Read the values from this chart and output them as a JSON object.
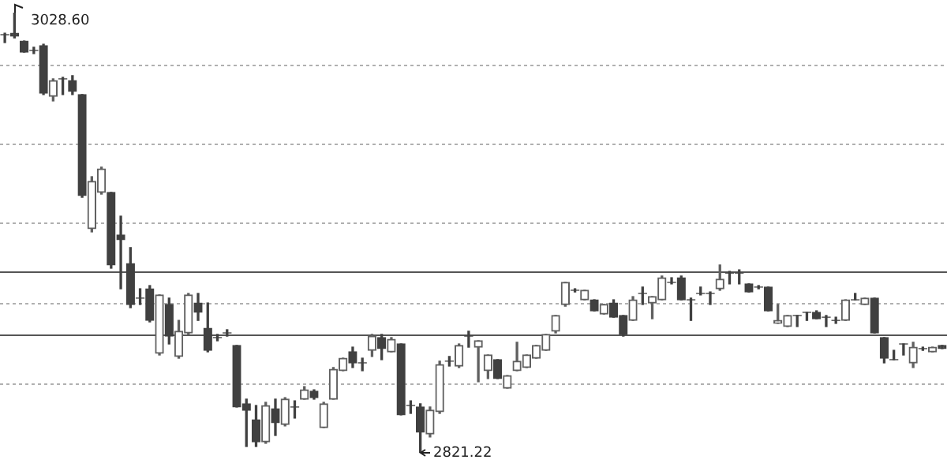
{
  "chart_data": {
    "type": "candlestick",
    "categories": [
      null,
      null,
      null,
      null,
      null,
      null,
      null,
      null,
      null,
      null,
      null,
      null,
      null,
      null,
      null,
      null,
      null,
      null,
      null,
      null,
      null,
      null,
      null,
      null,
      null,
      null,
      null,
      null,
      null,
      null,
      null,
      null,
      null,
      null,
      null,
      null,
      null,
      null,
      null,
      null,
      null,
      null,
      null,
      null,
      null,
      null,
      null,
      null,
      null,
      null,
      null,
      null,
      null,
      null,
      null,
      null,
      null,
      null,
      null,
      null,
      null,
      null,
      null,
      null,
      null,
      null,
      null,
      null,
      null,
      null,
      null,
      null,
      null,
      null,
      null,
      null,
      null,
      null,
      null,
      null,
      null,
      null,
      null,
      null,
      null,
      null,
      null,
      null,
      null,
      null,
      null,
      null,
      null,
      null,
      null,
      null,
      null,
      null
    ],
    "ohlc": [
      [
        3018.2,
        3018.9,
        3014.5,
        3018.2
      ],
      [
        3018.9,
        3028.6,
        3016.7,
        3017.5
      ],
      [
        3015.2,
        3015.2,
        3010.0,
        3010.0
      ],
      [
        3010.8,
        3012.3,
        3009.3,
        3010.8
      ],
      [
        3013.0,
        3013.7,
        2990.0,
        2990.7
      ],
      [
        2989.2,
        2997.4,
        2987.0,
        2996.6
      ],
      [
        2997.4,
        2998.1,
        2990.0,
        2997.4
      ],
      [
        2996.6,
        2998.9,
        2990.0,
        2991.5
      ],
      [
        2990.0,
        2990.0,
        2941.6,
        2942.4
      ],
      [
        2926.8,
        2951.3,
        2925.3,
        2949.1
      ],
      [
        2943.9,
        2955.8,
        2943.1,
        2955.0
      ],
      [
        2943.9,
        2943.9,
        2908.2,
        2909.7
      ],
      [
        2923.8,
        2932.7,
        2898.5,
        2921.6
      ],
      [
        2910.4,
        2917.9,
        2889.6,
        2891.1
      ],
      [
        2894.1,
        2898.5,
        2891.1,
        2894.1
      ],
      [
        2898.5,
        2900.0,
        2882.9,
        2883.6
      ],
      [
        2868.1,
        2895.6,
        2867.3,
        2895.6
      ],
      [
        2891.1,
        2894.1,
        2872.5,
        2876.2
      ],
      [
        2866.6,
        2883.6,
        2865.8,
        2878.5
      ],
      [
        2877.7,
        2896.3,
        2877.0,
        2895.6
      ],
      [
        2891.8,
        2896.3,
        2883.6,
        2887.4
      ],
      [
        2879.9,
        2891.8,
        2868.8,
        2869.5
      ],
      [
        2875.5,
        2877.0,
        2874.0,
        2875.5
      ],
      [
        2877.7,
        2879.2,
        2876.2,
        2877.7
      ],
      [
        2871.8,
        2871.8,
        2842.8,
        2842.8
      ],
      [
        2844.3,
        2846.5,
        2824.2,
        2841.3
      ],
      [
        2836.8,
        2843.5,
        2824.2,
        2826.4
      ],
      [
        2826.4,
        2845.0,
        2825.7,
        2843.5
      ],
      [
        2842.0,
        2846.5,
        2829.4,
        2835.4
      ],
      [
        2834.6,
        2847.2,
        2833.9,
        2846.5
      ],
      [
        2842.8,
        2845.7,
        2837.6,
        2842.8
      ],
      [
        2846.5,
        2852.4,
        2846.5,
        2850.9
      ],
      [
        2850.2,
        2850.9,
        2846.5,
        2847.2
      ],
      [
        2833.1,
        2845.0,
        2833.1,
        2844.3
      ],
      [
        2846.5,
        2861.4,
        2846.5,
        2860.6
      ],
      [
        2859.9,
        2865.8,
        2859.9,
        2865.8
      ],
      [
        2868.8,
        2871.0,
        2861.4,
        2863.6
      ],
      [
        2863.6,
        2865.8,
        2859.9,
        2863.6
      ],
      [
        2869.5,
        2877.0,
        2866.6,
        2876.2
      ],
      [
        2875.5,
        2877.0,
        2865.1,
        2870.3
      ],
      [
        2868.8,
        2875.5,
        2868.8,
        2874.7
      ],
      [
        2872.5,
        2872.5,
        2839.1,
        2839.1
      ],
      [
        2843.5,
        2845.7,
        2839.8,
        2843.5
      ],
      [
        2842.8,
        2844.3,
        2821.22,
        2830.9
      ],
      [
        2830.1,
        2842.8,
        2828.7,
        2841.3
      ],
      [
        2840.6,
        2864.4,
        2839.8,
        2862.8
      ],
      [
        2864.4,
        2866.6,
        2862.1,
        2864.4
      ],
      [
        2862.1,
        2872.5,
        2861.4,
        2871.8
      ],
      [
        2876.2,
        2878.5,
        2871.0,
        2876.2
      ],
      [
        2871.0,
        2874.0,
        2854.7,
        2874.0
      ],
      [
        2859.9,
        2867.3,
        2856.2,
        2867.3
      ],
      [
        2865.1,
        2865.1,
        2856.2,
        2856.2
      ],
      [
        2851.7,
        2857.6,
        2851.7,
        2857.6
      ],
      [
        2859.9,
        2873.3,
        2859.9,
        2864.4
      ],
      [
        2861.4,
        2867.3,
        2861.4,
        2867.3
      ],
      [
        2865.8,
        2871.8,
        2865.8,
        2871.8
      ],
      [
        2869.5,
        2877.0,
        2869.5,
        2877.0
      ],
      [
        2878.5,
        2885.9,
        2877.7,
        2885.9
      ],
      [
        2891.1,
        2901.5,
        2890.3,
        2901.5
      ],
      [
        2897.8,
        2898.5,
        2897.0,
        2897.8
      ],
      [
        2893.3,
        2897.8,
        2893.3,
        2897.8
      ],
      [
        2893.3,
        2893.3,
        2888.1,
        2888.1
      ],
      [
        2886.6,
        2891.1,
        2886.6,
        2891.1
      ],
      [
        2891.8,
        2893.3,
        2885.1,
        2885.1
      ],
      [
        2885.9,
        2885.9,
        2876.2,
        2877.0
      ],
      [
        2883.6,
        2894.8,
        2883.6,
        2893.3
      ],
      [
        2896.3,
        2899.3,
        2891.1,
        2896.3
      ],
      [
        2891.8,
        2894.8,
        2884.4,
        2894.8
      ],
      [
        2893.3,
        2904.5,
        2893.3,
        2903.7
      ],
      [
        2901.5,
        2903.7,
        2900.8,
        2901.5
      ],
      [
        2903.7,
        2904.5,
        2893.3,
        2893.3
      ],
      [
        2893.3,
        2894.1,
        2883.6,
        2893.3
      ],
      [
        2896.3,
        2899.3,
        2895.6,
        2896.3
      ],
      [
        2896.3,
        2897.0,
        2891.1,
        2896.3
      ],
      [
        2898.5,
        2909.7,
        2897.8,
        2903.0
      ],
      [
        2905.9,
        2906.7,
        2900.8,
        2905.9
      ],
      [
        2905.9,
        2907.4,
        2900.8,
        2905.9
      ],
      [
        2900.8,
        2900.8,
        2897.0,
        2897.0
      ],
      [
        2899.3,
        2900.0,
        2898.5,
        2899.3
      ],
      [
        2899.3,
        2899.3,
        2888.1,
        2888.1
      ],
      [
        2882.2,
        2891.1,
        2882.2,
        2883.6
      ],
      [
        2880.7,
        2885.9,
        2880.7,
        2885.9
      ],
      [
        2885.9,
        2885.9,
        2880.7,
        2885.9
      ],
      [
        2887.4,
        2887.4,
        2883.6,
        2887.4
      ],
      [
        2887.4,
        2888.1,
        2884.4,
        2884.4
      ],
      [
        2885.1,
        2885.9,
        2880.7,
        2885.1
      ],
      [
        2883.6,
        2885.1,
        2882.2,
        2883.6
      ],
      [
        2883.6,
        2893.3,
        2883.6,
        2893.3
      ],
      [
        2893.3,
        2896.3,
        2893.3,
        2893.3
      ],
      [
        2891.1,
        2894.1,
        2891.1,
        2894.1
      ],
      [
        2894.1,
        2894.1,
        2877.7,
        2877.7
      ],
      [
        2875.5,
        2875.5,
        2863.6,
        2865.8
      ],
      [
        2865.1,
        2869.5,
        2865.1,
        2865.1
      ],
      [
        2872.5,
        2872.5,
        2867.3,
        2872.5
      ],
      [
        2863.6,
        2873.3,
        2861.4,
        2871.0
      ],
      [
        2870.3,
        2871.0,
        2869.5,
        2870.3
      ],
      [
        2868.8,
        2871.0,
        2868.8,
        2871.0
      ],
      [
        2871.8,
        2871.8,
        2870.3,
        2870.3
      ]
    ],
    "colors": [
      "#404040",
      "#404040",
      "#404040",
      "#404040",
      "#404040",
      "#606060",
      "#404040",
      "#404040",
      "#404040",
      "#606060",
      "#606060",
      "#404040",
      "#404040",
      "#404040",
      "#404040",
      "#404040",
      "#606060",
      "#404040",
      "#606060",
      "#606060",
      "#404040",
      "#404040",
      "#404040",
      "#404040",
      "#404040",
      "#404040",
      "#404040",
      "#606060",
      "#404040",
      "#606060",
      "#404040",
      "#606060",
      "#404040",
      "#606060",
      "#606060",
      "#606060",
      "#404040",
      "#404040",
      "#606060",
      "#404040",
      "#606060",
      "#404040",
      "#404040",
      "#404040",
      "#606060",
      "#606060",
      "#404040",
      "#606060",
      "#404040",
      "#606060",
      "#606060",
      "#404040",
      "#606060",
      "#606060",
      "#606060",
      "#606060",
      "#606060",
      "#606060",
      "#606060",
      "#404040",
      "#606060",
      "#404040",
      "#606060",
      "#404040",
      "#404040",
      "#606060",
      "#404040",
      "#606060",
      "#606060",
      "#404040",
      "#404040",
      "#404040",
      "#404040",
      "#404040",
      "#606060",
      "#404040",
      "#404040",
      "#404040",
      "#404040",
      "#404040",
      "#606060",
      "#606060",
      "#404040",
      "#404040",
      "#404040",
      "#404040",
      "#404040",
      "#606060",
      "#404040",
      "#606060",
      "#404040",
      "#404040",
      "#404040",
      "#404040",
      "#606060",
      "#404040",
      "#606060",
      "#404040"
    ],
    "yticks": [
      {
        "value": 3004,
        "label": null
      },
      {
        "value": 2967,
        "label": null
      },
      {
        "value": 2930,
        "label": null
      },
      {
        "value": 2892,
        "label": null
      },
      {
        "value": 2854,
        "label": null
      }
    ],
    "grid": "y",
    "tick_labels": false,
    "ref_lines": [
      {
        "axis": "y",
        "value": 2906.9,
        "color": "#555555"
      },
      {
        "axis": "y",
        "value": 2877.0,
        "color": "#555555"
      }
    ],
    "annotations": [
      "3028.60",
      "2821.22"
    ]
  }
}
